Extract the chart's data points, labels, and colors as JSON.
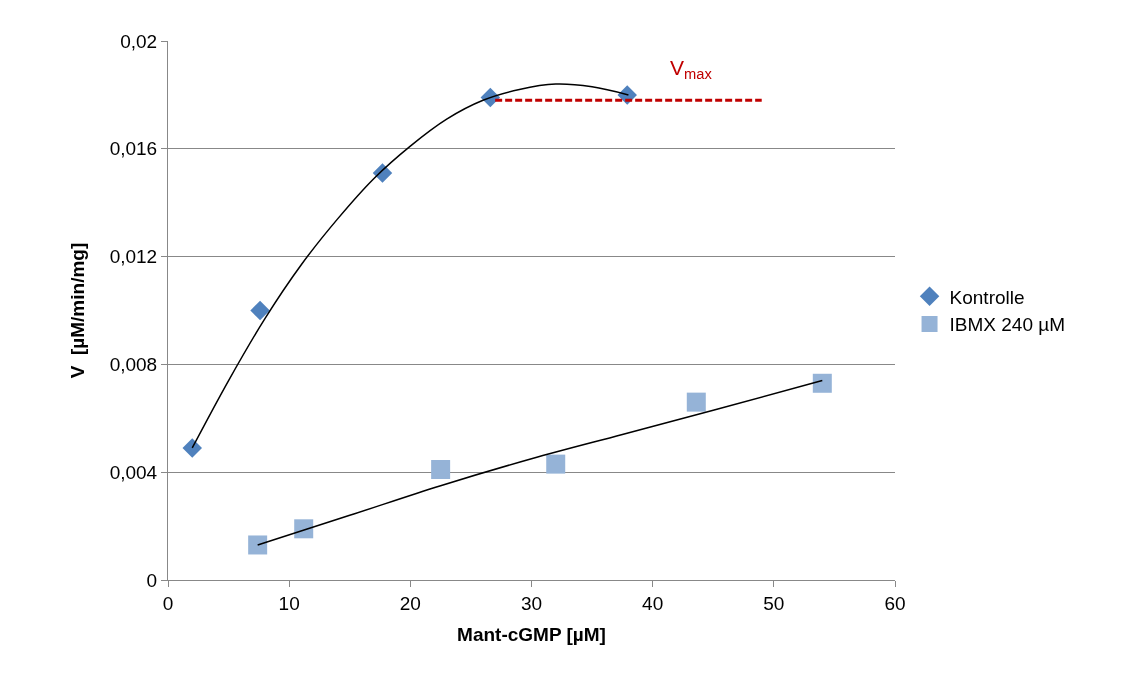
{
  "chart_data": {
    "type": "scatter",
    "xlabel": "Mant-cGMP [µM]",
    "ylabel": "V  [µM/min/mg]",
    "xlim": [
      0,
      60
    ],
    "xticks": [
      0,
      10,
      20,
      30,
      40,
      50,
      60
    ],
    "ylim": [
      0,
      0.02
    ],
    "yticks": [
      0,
      {
        "value": 0.004,
        "label": "0,004"
      },
      {
        "value": 0.008,
        "label": "0,008"
      },
      {
        "value": 0.012,
        "label": "0,012"
      },
      {
        "value": 0.016,
        "label": "0,016"
      },
      {
        "value": 0.02,
        "label": "0,02"
      }
    ],
    "grid": "y",
    "legend": "right",
    "annotations": [
      "V$_{max}$"
    ],
    "series": [
      {
        "name": "Kontrolle",
        "marker": "diamond",
        "color": "#4f81bd",
        "x": [
          2.0,
          7.6,
          17.7,
          26.6,
          37.9
        ],
        "values": [
          0.0049,
          0.01,
          0.0151,
          0.0179,
          0.018
        ]
      },
      {
        "name": "IBMX 240 µM",
        "marker": "square",
        "color": "#95b3d7",
        "x": [
          7.4,
          11.2,
          22.5,
          32.0,
          43.6,
          54.0
        ],
        "values": [
          0.0013,
          0.0019,
          0.0041,
          0.0043,
          0.0066,
          0.0073
        ]
      },
      {
        "type": "line",
        "marker": "none",
        "line_style": "solid",
        "color": "#000000",
        "x": [
          2,
          5,
          8,
          11,
          14,
          17,
          20,
          23,
          26,
          29,
          32,
          35,
          38
        ],
        "values": [
          0.0049,
          0.0074,
          0.0097,
          0.0117,
          0.0134,
          0.0149,
          0.0161,
          0.0171,
          0.0178,
          0.0182,
          0.0184,
          0.0183,
          0.018
        ]
      },
      {
        "type": "line",
        "marker": "none",
        "line_style": "solid",
        "color": "#000000",
        "x": [
          7.4,
          15,
          22.5,
          30,
          37.5,
          45,
          54
        ],
        "values": [
          0.0013,
          0.0024,
          0.0035,
          0.0045,
          0.0054,
          0.0063,
          0.0074
        ]
      },
      {
        "type": "line",
        "marker": "none",
        "line_style": "dashed",
        "color": "#c00000",
        "x": [
          27,
          49
        ],
        "values": [
          0.0178,
          0.0178
        ]
      }
    ]
  }
}
